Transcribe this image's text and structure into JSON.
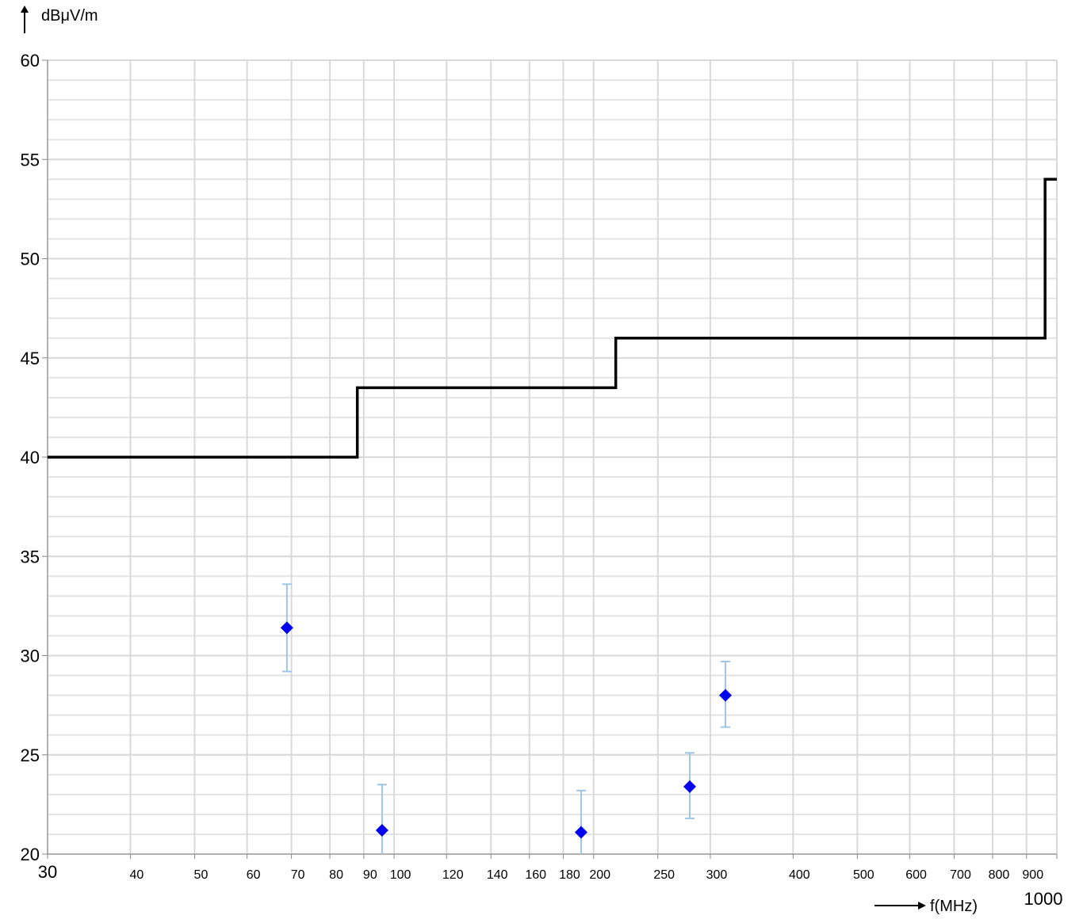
{
  "chart_data": {
    "type": "scatter",
    "y_label": "dBμV/m",
    "x_label": "f(MHz)",
    "xscale": "log",
    "xlim": [
      30,
      1000
    ],
    "xticks": [
      30,
      40,
      50,
      60,
      70,
      80,
      90,
      100,
      120,
      140,
      160,
      180,
      200,
      250,
      300,
      400,
      500,
      600,
      700,
      800,
      900,
      1000
    ],
    "ylim": [
      20,
      60
    ],
    "yticks": [
      20,
      25,
      30,
      35,
      40,
      45,
      50,
      55,
      60
    ],
    "y_minor_step": 1,
    "grid": true,
    "limit_line": {
      "color": "#000000",
      "x": [
        30,
        88,
        88,
        216,
        216,
        960,
        960,
        1000
      ],
      "values": [
        40,
        40,
        43.5,
        43.5,
        46,
        46,
        54,
        54
      ]
    },
    "series": [
      {
        "color": "#0000ee",
        "error_color": "#9fc5e8",
        "x": [
          68.9,
          95.9,
          191.5,
          279.3,
          316.2
        ],
        "values": [
          31.4,
          21.2,
          21.1,
          23.4,
          28.0
        ],
        "err_upper": [
          33.6,
          23.5,
          23.2,
          25.1,
          29.7
        ],
        "err_lower": [
          29.2,
          18.9,
          19.0,
          21.8,
          26.4
        ]
      }
    ]
  }
}
